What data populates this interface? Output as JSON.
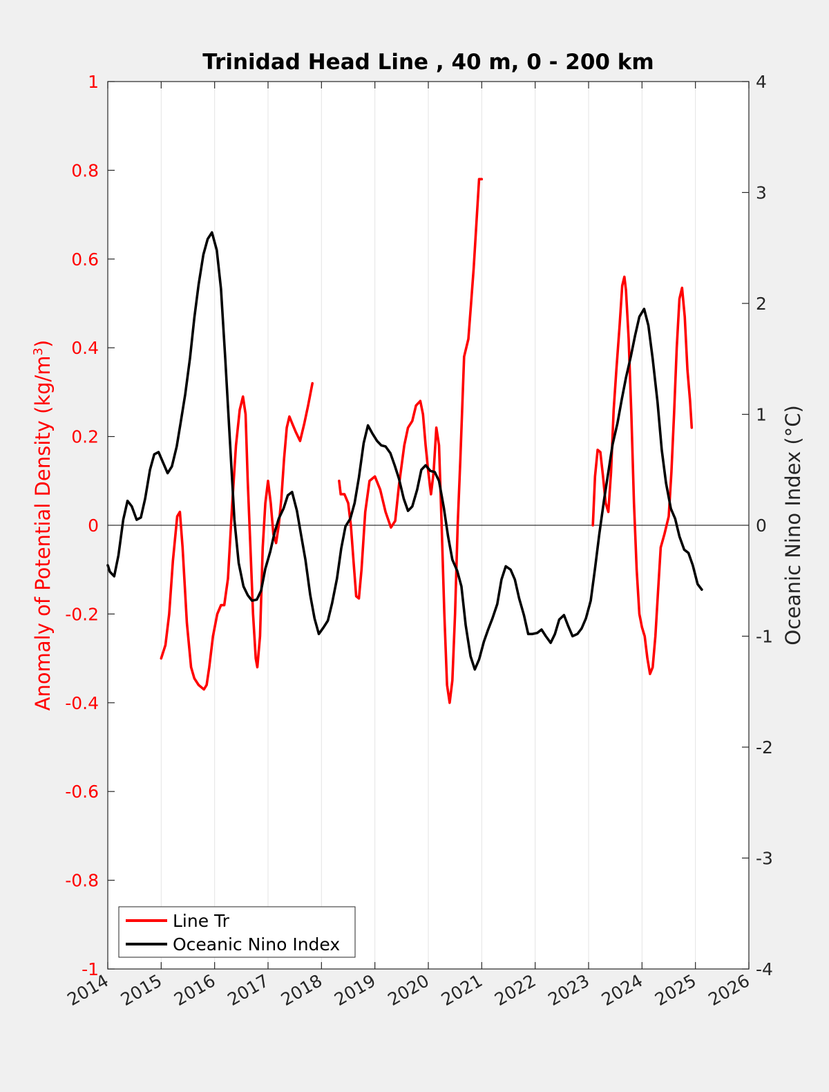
{
  "chart_data": {
    "type": "line",
    "title": "Trinidad Head Line , 40 m, 0 - 200 km",
    "xlim": [
      2014,
      2026
    ],
    "x_ticks": [
      "2014",
      "2015",
      "2016",
      "2017",
      "2018",
      "2019",
      "2020",
      "2021",
      "2022",
      "2023",
      "2024",
      "2025",
      "2026"
    ],
    "y_left": {
      "label": "Anomaly of Potential Density (kg/m",
      "label_sup": "3",
      "label_close": ")",
      "lim": [
        -1,
        1
      ],
      "ticks": [
        "-1",
        "-0.8",
        "-0.6",
        "-0.4",
        "-0.2",
        "0",
        "0.2",
        "0.4",
        "0.6",
        "0.8",
        "1"
      ],
      "color": "#ff0000"
    },
    "y_right": {
      "label": "Oceanic Nino Index (°C)",
      "lim": [
        -4,
        4
      ],
      "ticks": [
        "-4",
        "-3",
        "-2",
        "-1",
        "0",
        "1",
        "2",
        "3",
        "4"
      ],
      "color": "#000000"
    },
    "grid": "x-only",
    "zero_line": true,
    "legend": {
      "placement": "bottom-left",
      "entries": [
        "Line Tr",
        "Oceanic Nino Index"
      ]
    },
    "series": [
      {
        "name": "Line Tr",
        "axis": "left",
        "color": "#ff0000",
        "segments": [
          {
            "x": [
              2015.0,
              2015.08,
              2015.15,
              2015.22,
              2015.3,
              2015.35,
              2015.4,
              2015.48,
              2015.56,
              2015.62,
              2015.7,
              2015.8,
              2015.85,
              2015.9,
              2015.97,
              2016.05,
              2016.12,
              2016.18,
              2016.25,
              2016.33,
              2016.4,
              2016.47,
              2016.53,
              2016.58,
              2016.62,
              2016.67,
              2016.72,
              2016.77,
              2016.8,
              2016.85,
              2016.9,
              2016.95,
              2017.0,
              2017.05,
              2017.1,
              2017.15,
              2017.2,
              2017.25,
              2017.3,
              2017.35,
              2017.4,
              2017.45,
              2017.52,
              2017.6,
              2017.68,
              2017.75,
              2017.83
            ],
            "y": [
              -0.3,
              -0.27,
              -0.2,
              -0.08,
              0.02,
              0.03,
              -0.05,
              -0.22,
              -0.32,
              -0.345,
              -0.36,
              -0.37,
              -0.36,
              -0.32,
              -0.25,
              -0.2,
              -0.18,
              -0.18,
              -0.12,
              0.05,
              0.18,
              0.26,
              0.29,
              0.25,
              0.1,
              -0.05,
              -0.2,
              -0.3,
              -0.32,
              -0.25,
              -0.05,
              0.05,
              0.1,
              0.05,
              -0.02,
              -0.04,
              0.0,
              0.06,
              0.15,
              0.22,
              0.245,
              0.23,
              0.21,
              0.19,
              0.23,
              0.27,
              0.32
            ]
          },
          {
            "x": [
              2018.33,
              2018.36,
              2018.43,
              2018.5,
              2018.55,
              2018.6,
              2018.65,
              2018.7,
              2018.75,
              2018.82,
              2018.9,
              2019.0,
              2019.1,
              2019.2,
              2019.3,
              2019.38,
              2019.45,
              2019.55,
              2019.62,
              2019.7,
              2019.77,
              2019.85,
              2019.9,
              2019.95,
              2020.0,
              2020.05,
              2020.1,
              2020.15,
              2020.2,
              2020.25,
              2020.3,
              2020.35,
              2020.4,
              2020.45,
              2020.5,
              2020.55,
              2020.6,
              2020.67,
              2020.75,
              2020.8,
              2020.85,
              2020.9,
              2020.95,
              2021.0
            ],
            "y": [
              0.1,
              0.07,
              0.07,
              0.05,
              0.0,
              -0.08,
              -0.16,
              -0.165,
              -0.1,
              0.03,
              0.1,
              0.11,
              0.08,
              0.03,
              -0.005,
              0.01,
              0.09,
              0.18,
              0.22,
              0.235,
              0.27,
              0.28,
              0.25,
              0.18,
              0.12,
              0.07,
              0.12,
              0.22,
              0.18,
              0.0,
              -0.2,
              -0.36,
              -0.4,
              -0.35,
              -0.2,
              0.0,
              0.15,
              0.38,
              0.42,
              0.5,
              0.58,
              0.68,
              0.78,
              0.78
            ]
          },
          {
            "x": [
              2023.08,
              2023.12,
              2023.17,
              2023.22,
              2023.27,
              2023.32,
              2023.37,
              2023.42,
              2023.47,
              2023.52,
              2023.58,
              2023.63,
              2023.67,
              2023.7,
              2023.75,
              2023.8,
              2023.85,
              2023.9,
              2023.95,
              2024.0,
              2024.05,
              2024.1,
              2024.15,
              2024.2,
              2024.25,
              2024.3,
              2024.35,
              2024.42,
              2024.5,
              2024.55,
              2024.6,
              2024.65,
              2024.7,
              2024.75,
              2024.8,
              2024.85,
              2024.9,
              2024.93
            ],
            "y": [
              0.0,
              0.11,
              0.17,
              0.165,
              0.11,
              0.05,
              0.03,
              0.12,
              0.26,
              0.35,
              0.45,
              0.54,
              0.56,
              0.53,
              0.42,
              0.25,
              0.05,
              -0.1,
              -0.2,
              -0.23,
              -0.25,
              -0.3,
              -0.335,
              -0.32,
              -0.25,
              -0.15,
              -0.05,
              -0.02,
              0.02,
              0.12,
              0.25,
              0.4,
              0.51,
              0.535,
              0.47,
              0.35,
              0.28,
              0.22
            ]
          }
        ]
      },
      {
        "name": "Oceanic Nino Index",
        "axis": "right",
        "color": "#000000",
        "segments": [
          {
            "x": [
              2014.0,
              2014.04,
              2014.12,
              2014.2,
              2014.29,
              2014.37,
              2014.45,
              2014.54,
              2014.62,
              2014.7,
              2014.79,
              2014.87,
              2014.95,
              2015.04,
              2015.12,
              2015.2,
              2015.29,
              2015.37,
              2015.45,
              2015.54,
              2015.62,
              2015.7,
              2015.79,
              2015.87,
              2015.95,
              2016.04,
              2016.12,
              2016.2,
              2016.29,
              2016.37,
              2016.45,
              2016.54,
              2016.62,
              2016.7,
              2016.79,
              2016.87,
              2016.95,
              2017.04,
              2017.12,
              2017.2,
              2017.29,
              2017.37,
              2017.45,
              2017.54,
              2017.62,
              2017.7,
              2017.79,
              2017.87,
              2017.95,
              2018.04,
              2018.12,
              2018.2,
              2018.29,
              2018.37,
              2018.45,
              2018.54,
              2018.62,
              2018.7,
              2018.79,
              2018.87,
              2018.95,
              2019.04,
              2019.12,
              2019.2,
              2019.29,
              2019.37,
              2019.45,
              2019.54,
              2019.62,
              2019.7,
              2019.79,
              2019.87,
              2019.95,
              2020.04,
              2020.12,
              2020.2,
              2020.29,
              2020.37,
              2020.45,
              2020.54,
              2020.62,
              2020.7,
              2020.79,
              2020.87,
              2020.95,
              2021.04,
              2021.12,
              2021.2,
              2021.29,
              2021.37,
              2021.45,
              2021.54,
              2021.62,
              2021.7,
              2021.79,
              2021.87,
              2021.95,
              2022.04,
              2022.12,
              2022.2,
              2022.29,
              2022.37,
              2022.45,
              2022.54,
              2022.62,
              2022.7,
              2022.79,
              2022.87,
              2022.95,
              2023.04,
              2023.12,
              2023.2,
              2023.29,
              2023.37,
              2023.45,
              2023.54,
              2023.62,
              2023.7,
              2023.79,
              2023.87,
              2023.95,
              2024.04,
              2024.12,
              2024.2,
              2024.29,
              2024.37,
              2024.45,
              2024.54,
              2024.62,
              2024.7,
              2024.79,
              2024.87,
              2024.95,
              2025.04,
              2025.12
            ],
            "y": [
              -0.36,
              -0.42,
              -0.46,
              -0.27,
              0.05,
              0.22,
              0.17,
              0.05,
              0.07,
              0.24,
              0.5,
              0.64,
              0.66,
              0.56,
              0.47,
              0.53,
              0.71,
              0.94,
              1.18,
              1.51,
              1.87,
              2.17,
              2.44,
              2.58,
              2.64,
              2.48,
              2.13,
              1.5,
              0.73,
              0.05,
              -0.34,
              -0.55,
              -0.63,
              -0.68,
              -0.67,
              -0.59,
              -0.39,
              -0.24,
              -0.07,
              0.06,
              0.15,
              0.27,
              0.3,
              0.13,
              -0.09,
              -0.31,
              -0.63,
              -0.84,
              -0.98,
              -0.92,
              -0.86,
              -0.7,
              -0.48,
              -0.21,
              -0.01,
              0.06,
              0.2,
              0.43,
              0.74,
              0.9,
              0.83,
              0.76,
              0.72,
              0.71,
              0.65,
              0.54,
              0.42,
              0.24,
              0.13,
              0.17,
              0.32,
              0.5,
              0.54,
              0.49,
              0.48,
              0.4,
              0.16,
              -0.1,
              -0.31,
              -0.41,
              -0.55,
              -0.9,
              -1.18,
              -1.3,
              -1.21,
              -1.05,
              -0.94,
              -0.84,
              -0.71,
              -0.49,
              -0.37,
              -0.4,
              -0.49,
              -0.66,
              -0.81,
              -0.98,
              -0.98,
              -0.97,
              -0.94,
              -1.0,
              -1.06,
              -0.98,
              -0.85,
              -0.81,
              -0.91,
              -1.0,
              -0.98,
              -0.93,
              -0.84,
              -0.68,
              -0.39,
              -0.08,
              0.23,
              0.48,
              0.73,
              0.92,
              1.13,
              1.33,
              1.52,
              1.71,
              1.88,
              1.95,
              1.8,
              1.5,
              1.11,
              0.68,
              0.38,
              0.15,
              0.06,
              -0.1,
              -0.22,
              -0.25,
              -0.36,
              -0.53,
              -0.58
            ]
          }
        ]
      }
    ]
  }
}
